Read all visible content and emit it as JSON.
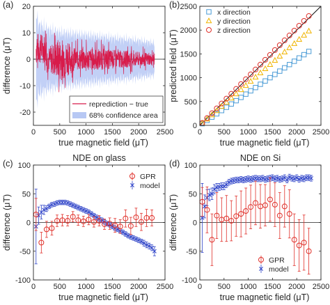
{
  "chart_data": [
    {
      "panel": "(a)",
      "type": "line",
      "title": "",
      "xlabel": "true magnetic field (μT)",
      "ylabel": "difference (μT)",
      "xlim": [
        0,
        2500
      ],
      "ylim": [
        -25,
        20
      ],
      "xticks": [
        0,
        500,
        1000,
        1500,
        2000,
        2500
      ],
      "yticks": [
        -20,
        -10,
        0,
        10,
        20
      ],
      "grid": false,
      "legend": "bottom-right",
      "x_range": [
        50,
        2300
      ],
      "series": [
        {
          "name": "reprediction − true",
          "kind": "line",
          "color": "#d81b4a",
          "envelope_x": [
            50,
            300,
            500,
            800,
            1200,
            1600,
            2000,
            2300
          ],
          "envelope_amplitude": [
            9,
            7,
            12,
            6,
            6,
            5,
            4,
            3
          ]
        },
        {
          "name": "68% confidence area",
          "kind": "band",
          "color": "#b7c8f4",
          "x": [
            50,
            100,
            300,
            500,
            1000,
            1500,
            2000,
            2300
          ],
          "half_width": [
            17,
            13,
            11,
            10,
            9,
            8,
            7,
            6
          ]
        }
      ]
    },
    {
      "panel": "(b)",
      "type": "scatter",
      "title": "",
      "xlabel": "true magnetic field (μT)",
      "ylabel": "predicted field (μT)",
      "xlim": [
        0,
        2500
      ],
      "ylim": [
        0,
        2500
      ],
      "xticks": [
        0,
        500,
        1000,
        1500,
        2000,
        2500
      ],
      "yticks": [
        0,
        500,
        1000,
        1500,
        2000,
        2500
      ],
      "grid": false,
      "legend": "top-left",
      "reference_line": {
        "color": "#000000",
        "from": [
          0,
          0
        ],
        "to": [
          2500,
          2500
        ]
      },
      "x": [
        50,
        150,
        250,
        350,
        450,
        550,
        650,
        750,
        850,
        950,
        1050,
        1150,
        1250,
        1350,
        1450,
        1550,
        1650,
        1750,
        1850,
        1950,
        2050,
        2150,
        2250
      ],
      "series": [
        {
          "name": "x direction",
          "marker": "square",
          "color": "#4a9bd6",
          "slope": 0.69
        },
        {
          "name": "y direction",
          "marker": "triangle",
          "color": "#f0b400",
          "slope": 0.88
        },
        {
          "name": "z direction",
          "marker": "circle",
          "color": "#e0302a",
          "slope": 1.02
        }
      ]
    },
    {
      "panel": "(c)",
      "type": "scatter",
      "title": "NDE on glass",
      "xlabel": "true magnetic field (μT)",
      "ylabel": "difference (μT)",
      "xlim": [
        0,
        2500
      ],
      "ylim": [
        -100,
        100
      ],
      "xticks": [
        0,
        500,
        1000,
        1500,
        2000,
        2500
      ],
      "yticks": [
        -100,
        -50,
        0,
        50,
        100
      ],
      "grid": false,
      "legend": "top-right",
      "zero_line": true,
      "series": [
        {
          "name": "GPR",
          "marker": "circle",
          "color": "#e0302a",
          "x": [
            50,
            150,
            250,
            350,
            450,
            550,
            650,
            750,
            850,
            950,
            1050,
            1150,
            1250,
            1350,
            1450,
            1550,
            1650,
            1750,
            1850,
            1950,
            2050,
            2150,
            2250
          ],
          "y": [
            14,
            -35,
            -12,
            -10,
            3,
            4,
            3,
            10,
            4,
            2,
            5,
            1,
            3,
            -3,
            -2,
            -5,
            -7,
            7,
            -6,
            9,
            1,
            8,
            8
          ],
          "err": [
            28,
            18,
            14,
            12,
            10,
            10,
            9,
            9,
            9,
            9,
            9,
            9,
            9,
            9,
            10,
            12,
            12,
            15,
            15,
            16,
            15,
            15,
            14
          ]
        },
        {
          "name": "model",
          "marker": "x",
          "color": "#2e43c8",
          "x": [
            50,
            100,
            150,
            200,
            250,
            300,
            350,
            400,
            450,
            500,
            550,
            600,
            650,
            700,
            750,
            800,
            850,
            900,
            950,
            1000,
            1050,
            1100,
            1150,
            1200,
            1250,
            1300,
            1350,
            1400,
            1450,
            1500,
            1550,
            1600,
            1650,
            1700,
            1750,
            1800,
            1850,
            1900,
            1950,
            2000,
            2050,
            2100,
            2150,
            2200,
            2250,
            2300
          ],
          "y": [
            -7,
            12,
            18,
            22,
            24,
            28,
            31,
            32,
            34,
            35,
            35,
            35,
            34,
            32,
            30,
            28,
            26,
            24,
            22,
            20,
            18,
            15,
            12,
            9,
            6,
            4,
            1,
            -2,
            -4,
            -7,
            -10,
            -12,
            -15,
            -17,
            -20,
            -23,
            -25,
            -27,
            -29,
            -31,
            -33,
            -36,
            -39,
            -41,
            -44,
            -50
          ],
          "err": [
            65,
            15,
            12,
            8,
            5,
            4,
            4,
            4,
            4,
            4,
            4,
            4,
            4,
            4,
            4,
            4,
            4,
            4,
            4,
            4,
            4,
            4,
            4,
            4,
            4,
            4,
            4,
            4,
            4,
            4,
            4,
            4,
            4,
            4,
            4,
            4,
            4,
            4,
            4,
            4,
            4,
            5,
            5,
            5,
            5,
            8
          ]
        }
      ]
    },
    {
      "panel": "(d)",
      "type": "scatter",
      "title": "NDE on Si",
      "xlabel": "true magnetic field (μT)",
      "ylabel": "difference (μT)",
      "xlim": [
        0,
        2500
      ],
      "ylim": [
        -100,
        100
      ],
      "xticks": [
        0,
        500,
        1000,
        1500,
        2000,
        2500
      ],
      "yticks": [
        -100,
        -50,
        0,
        50,
        100
      ],
      "grid": false,
      "legend": "bottom-right",
      "zero_line": true,
      "series": [
        {
          "name": "GPR",
          "marker": "circle",
          "color": "#e0302a",
          "x": [
            50,
            150,
            250,
            350,
            450,
            550,
            650,
            750,
            850,
            950,
            1050,
            1150,
            1250,
            1350,
            1450,
            1550,
            1650,
            1750,
            1850,
            1950,
            2050,
            2150,
            2250
          ],
          "y": [
            36,
            22,
            -30,
            12,
            5,
            7,
            3,
            11,
            15,
            20,
            27,
            34,
            28,
            30,
            40,
            31,
            12,
            28,
            15,
            -30,
            -40,
            -35,
            -50
          ],
          "err": [
            25,
            40,
            45,
            40,
            38,
            40,
            35,
            35,
            40,
            40,
            38,
            38,
            38,
            36,
            38,
            38,
            40,
            36,
            42,
            45,
            45,
            48,
            40
          ]
        },
        {
          "name": "model",
          "marker": "x",
          "color": "#2e43c8",
          "x": [
            50,
            100,
            150,
            200,
            250,
            300,
            350,
            400,
            450,
            500,
            550,
            600,
            650,
            700,
            750,
            800,
            850,
            900,
            950,
            1000,
            1050,
            1100,
            1150,
            1200,
            1250,
            1300,
            1350,
            1400,
            1450,
            1500,
            1550,
            1600,
            1650,
            1700,
            1750,
            1800,
            1850,
            1900,
            1950,
            2000,
            2050,
            2100,
            2150,
            2200,
            2250,
            2300
          ],
          "y": [
            8,
            28,
            43,
            48,
            50,
            58,
            61,
            62,
            63,
            63,
            66,
            70,
            72,
            73,
            74,
            74,
            75,
            74,
            75,
            76,
            75,
            76,
            77,
            76,
            76,
            77,
            75,
            76,
            77,
            78,
            76,
            77,
            75,
            76,
            78,
            74,
            79,
            77,
            76,
            78,
            75,
            77,
            76,
            78,
            78,
            77
          ],
          "err": [
            60,
            20,
            14,
            10,
            10,
            8,
            7,
            6,
            6,
            6,
            5,
            5,
            5,
            5,
            5,
            5,
            5,
            5,
            5,
            5,
            5,
            5,
            5,
            5,
            5,
            5,
            5,
            5,
            5,
            5,
            5,
            5,
            5,
            5,
            5,
            5,
            5,
            5,
            5,
            5,
            5,
            5,
            5,
            5,
            5,
            5
          ]
        }
      ]
    }
  ]
}
